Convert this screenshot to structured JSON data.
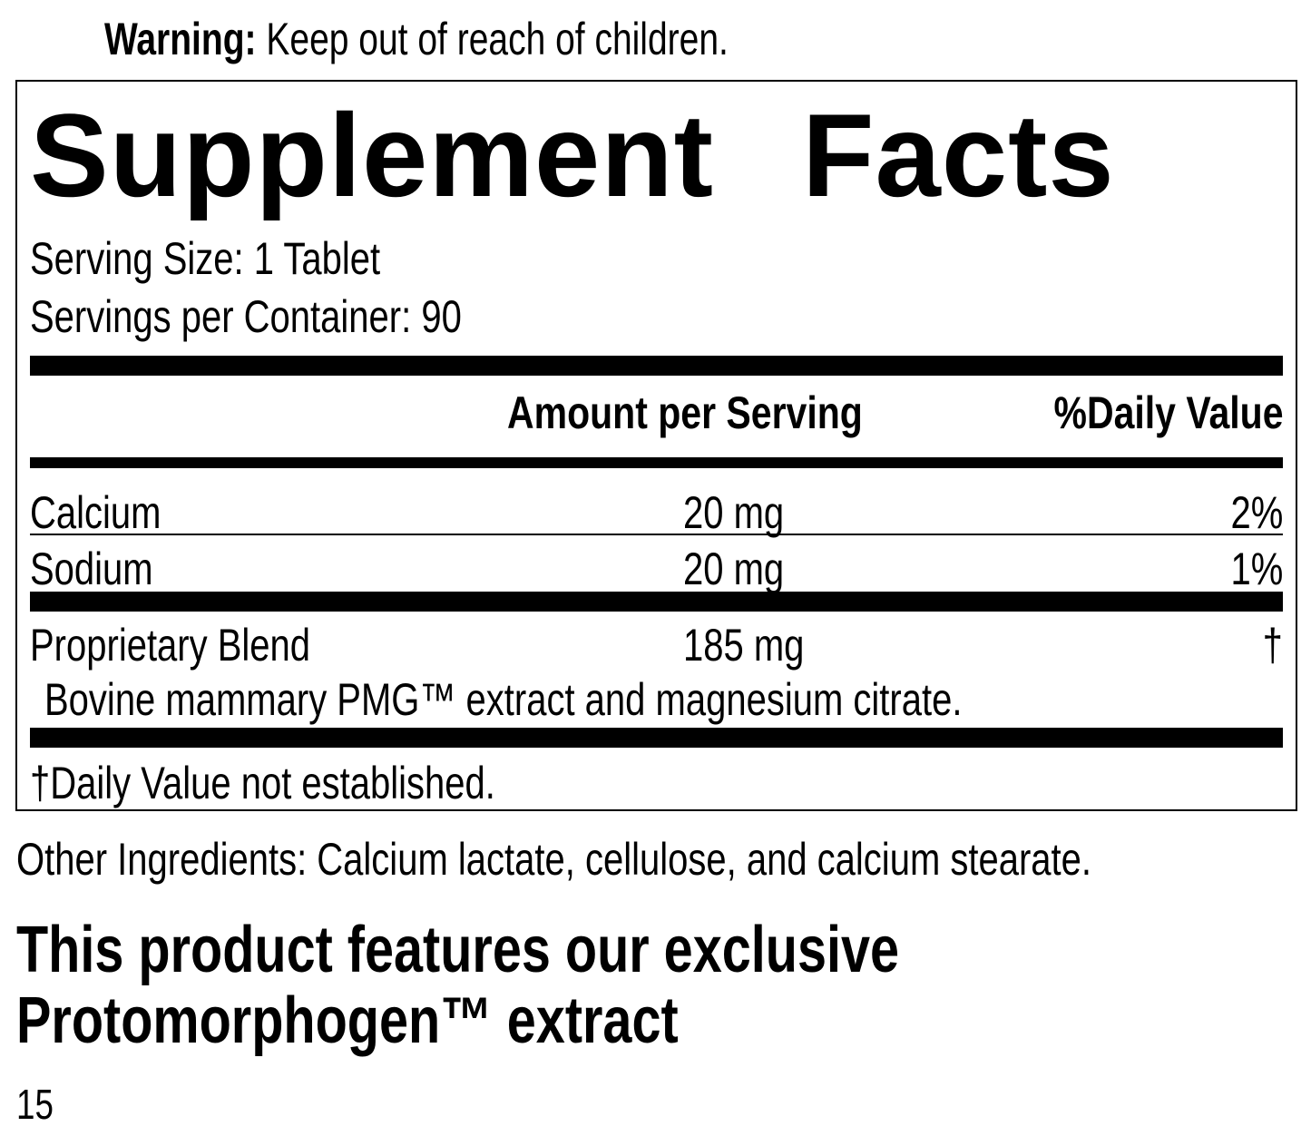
{
  "warning": {
    "label": "Warning:",
    "text": " Keep out of reach of children."
  },
  "title": "Supplement Facts",
  "serving_size": "Serving Size: 1 Tablet",
  "servings_per_container": "Servings per Container: 90",
  "headers": {
    "amount": "Amount per Serving",
    "dv": "%Daily Value"
  },
  "rows": [
    {
      "name": "Calcium",
      "amount": "20 mg",
      "dv": "2%"
    },
    {
      "name": "Sodium",
      "amount": "20 mg",
      "dv": "1%"
    },
    {
      "name": "Proprietary Blend",
      "amount": "185 mg",
      "dv": "†"
    }
  ],
  "blend_detail": "Bovine mammary PMG™ extract and magnesium citrate.",
  "footnote": "†Daily Value not established.",
  "other_ingredients": "Other Ingredients: Calcium lactate, cellulose, and calcium stearate.",
  "feature": {
    "line1": "This product features our exclusive",
    "line2": "Protomorphogen™ extract"
  },
  "page_number": "15"
}
